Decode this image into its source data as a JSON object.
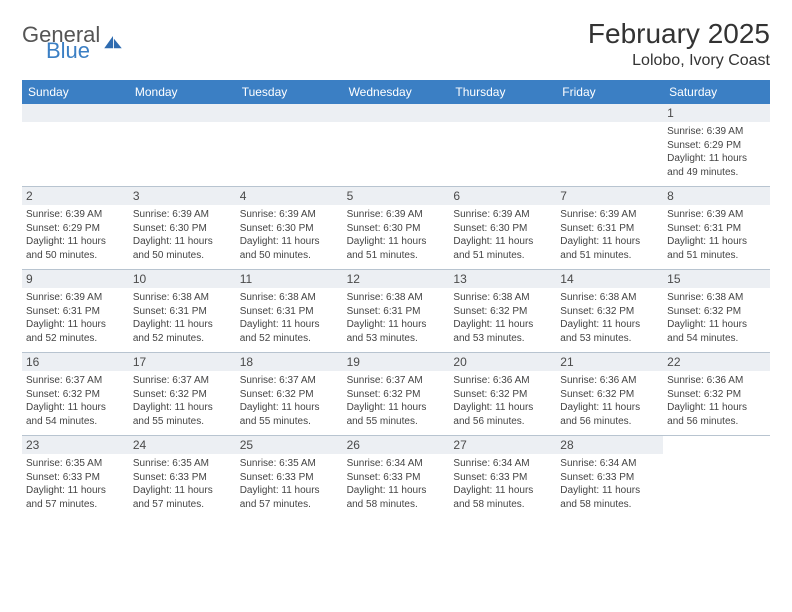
{
  "logo": {
    "word1": "General",
    "word2": "Blue"
  },
  "header": {
    "month_title": "February 2025",
    "location": "Lolobo, Ivory Coast"
  },
  "colors": {
    "header_bar": "#3b7fc4",
    "day_bar_bg": "#eceff3",
    "row_border": "#b8c4d0",
    "text": "#333333",
    "logo_blue": "#3b7fc4",
    "logo_gray": "#555555"
  },
  "weekdays": [
    "Sunday",
    "Monday",
    "Tuesday",
    "Wednesday",
    "Thursday",
    "Friday",
    "Saturday"
  ],
  "weeks": [
    [
      {
        "empty": true
      },
      {
        "empty": true
      },
      {
        "empty": true
      },
      {
        "empty": true
      },
      {
        "empty": true
      },
      {
        "empty": true
      },
      {
        "n": "1",
        "sunrise": "Sunrise: 6:39 AM",
        "sunset": "Sunset: 6:29 PM",
        "daylight1": "Daylight: 11 hours",
        "daylight2": "and 49 minutes."
      }
    ],
    [
      {
        "n": "2",
        "sunrise": "Sunrise: 6:39 AM",
        "sunset": "Sunset: 6:29 PM",
        "daylight1": "Daylight: 11 hours",
        "daylight2": "and 50 minutes."
      },
      {
        "n": "3",
        "sunrise": "Sunrise: 6:39 AM",
        "sunset": "Sunset: 6:30 PM",
        "daylight1": "Daylight: 11 hours",
        "daylight2": "and 50 minutes."
      },
      {
        "n": "4",
        "sunrise": "Sunrise: 6:39 AM",
        "sunset": "Sunset: 6:30 PM",
        "daylight1": "Daylight: 11 hours",
        "daylight2": "and 50 minutes."
      },
      {
        "n": "5",
        "sunrise": "Sunrise: 6:39 AM",
        "sunset": "Sunset: 6:30 PM",
        "daylight1": "Daylight: 11 hours",
        "daylight2": "and 51 minutes."
      },
      {
        "n": "6",
        "sunrise": "Sunrise: 6:39 AM",
        "sunset": "Sunset: 6:30 PM",
        "daylight1": "Daylight: 11 hours",
        "daylight2": "and 51 minutes."
      },
      {
        "n": "7",
        "sunrise": "Sunrise: 6:39 AM",
        "sunset": "Sunset: 6:31 PM",
        "daylight1": "Daylight: 11 hours",
        "daylight2": "and 51 minutes."
      },
      {
        "n": "8",
        "sunrise": "Sunrise: 6:39 AM",
        "sunset": "Sunset: 6:31 PM",
        "daylight1": "Daylight: 11 hours",
        "daylight2": "and 51 minutes."
      }
    ],
    [
      {
        "n": "9",
        "sunrise": "Sunrise: 6:39 AM",
        "sunset": "Sunset: 6:31 PM",
        "daylight1": "Daylight: 11 hours",
        "daylight2": "and 52 minutes."
      },
      {
        "n": "10",
        "sunrise": "Sunrise: 6:38 AM",
        "sunset": "Sunset: 6:31 PM",
        "daylight1": "Daylight: 11 hours",
        "daylight2": "and 52 minutes."
      },
      {
        "n": "11",
        "sunrise": "Sunrise: 6:38 AM",
        "sunset": "Sunset: 6:31 PM",
        "daylight1": "Daylight: 11 hours",
        "daylight2": "and 52 minutes."
      },
      {
        "n": "12",
        "sunrise": "Sunrise: 6:38 AM",
        "sunset": "Sunset: 6:31 PM",
        "daylight1": "Daylight: 11 hours",
        "daylight2": "and 53 minutes."
      },
      {
        "n": "13",
        "sunrise": "Sunrise: 6:38 AM",
        "sunset": "Sunset: 6:32 PM",
        "daylight1": "Daylight: 11 hours",
        "daylight2": "and 53 minutes."
      },
      {
        "n": "14",
        "sunrise": "Sunrise: 6:38 AM",
        "sunset": "Sunset: 6:32 PM",
        "daylight1": "Daylight: 11 hours",
        "daylight2": "and 53 minutes."
      },
      {
        "n": "15",
        "sunrise": "Sunrise: 6:38 AM",
        "sunset": "Sunset: 6:32 PM",
        "daylight1": "Daylight: 11 hours",
        "daylight2": "and 54 minutes."
      }
    ],
    [
      {
        "n": "16",
        "sunrise": "Sunrise: 6:37 AM",
        "sunset": "Sunset: 6:32 PM",
        "daylight1": "Daylight: 11 hours",
        "daylight2": "and 54 minutes."
      },
      {
        "n": "17",
        "sunrise": "Sunrise: 6:37 AM",
        "sunset": "Sunset: 6:32 PM",
        "daylight1": "Daylight: 11 hours",
        "daylight2": "and 55 minutes."
      },
      {
        "n": "18",
        "sunrise": "Sunrise: 6:37 AM",
        "sunset": "Sunset: 6:32 PM",
        "daylight1": "Daylight: 11 hours",
        "daylight2": "and 55 minutes."
      },
      {
        "n": "19",
        "sunrise": "Sunrise: 6:37 AM",
        "sunset": "Sunset: 6:32 PM",
        "daylight1": "Daylight: 11 hours",
        "daylight2": "and 55 minutes."
      },
      {
        "n": "20",
        "sunrise": "Sunrise: 6:36 AM",
        "sunset": "Sunset: 6:32 PM",
        "daylight1": "Daylight: 11 hours",
        "daylight2": "and 56 minutes."
      },
      {
        "n": "21",
        "sunrise": "Sunrise: 6:36 AM",
        "sunset": "Sunset: 6:32 PM",
        "daylight1": "Daylight: 11 hours",
        "daylight2": "and 56 minutes."
      },
      {
        "n": "22",
        "sunrise": "Sunrise: 6:36 AM",
        "sunset": "Sunset: 6:32 PM",
        "daylight1": "Daylight: 11 hours",
        "daylight2": "and 56 minutes."
      }
    ],
    [
      {
        "n": "23",
        "sunrise": "Sunrise: 6:35 AM",
        "sunset": "Sunset: 6:33 PM",
        "daylight1": "Daylight: 11 hours",
        "daylight2": "and 57 minutes."
      },
      {
        "n": "24",
        "sunrise": "Sunrise: 6:35 AM",
        "sunset": "Sunset: 6:33 PM",
        "daylight1": "Daylight: 11 hours",
        "daylight2": "and 57 minutes."
      },
      {
        "n": "25",
        "sunrise": "Sunrise: 6:35 AM",
        "sunset": "Sunset: 6:33 PM",
        "daylight1": "Daylight: 11 hours",
        "daylight2": "and 57 minutes."
      },
      {
        "n": "26",
        "sunrise": "Sunrise: 6:34 AM",
        "sunset": "Sunset: 6:33 PM",
        "daylight1": "Daylight: 11 hours",
        "daylight2": "and 58 minutes."
      },
      {
        "n": "27",
        "sunrise": "Sunrise: 6:34 AM",
        "sunset": "Sunset: 6:33 PM",
        "daylight1": "Daylight: 11 hours",
        "daylight2": "and 58 minutes."
      },
      {
        "n": "28",
        "sunrise": "Sunrise: 6:34 AM",
        "sunset": "Sunset: 6:33 PM",
        "daylight1": "Daylight: 11 hours",
        "daylight2": "and 58 minutes."
      },
      {
        "empty": true,
        "nobar": true
      }
    ]
  ]
}
